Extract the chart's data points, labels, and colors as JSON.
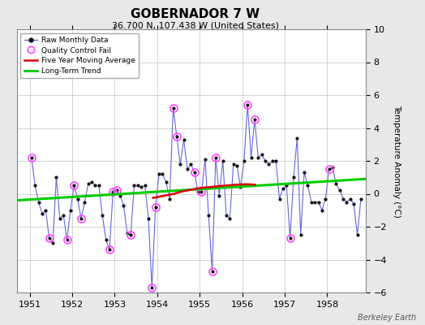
{
  "title": "GOBERNADOR 7 W",
  "subtitle": "36.700 N, 107.438 W (United States)",
  "ylabel": "Temperature Anomaly (°C)",
  "watermark": "Berkeley Earth",
  "ylim": [
    -6,
    10
  ],
  "yticks": [
    -6,
    -4,
    -2,
    0,
    2,
    4,
    6,
    8,
    10
  ],
  "xlim": [
    1950.7,
    1958.9
  ],
  "xticks": [
    1951,
    1952,
    1953,
    1954,
    1955,
    1956,
    1957,
    1958
  ],
  "bg_color": "#e8e8e8",
  "plot_bg_color": "#ffffff",
  "raw_x": [
    1951.042,
    1951.125,
    1951.208,
    1951.292,
    1951.375,
    1951.458,
    1951.542,
    1951.625,
    1951.708,
    1951.792,
    1951.875,
    1951.958,
    1952.042,
    1952.125,
    1952.208,
    1952.292,
    1952.375,
    1952.458,
    1952.542,
    1952.625,
    1952.708,
    1952.792,
    1952.875,
    1952.958,
    1953.042,
    1953.125,
    1953.208,
    1953.292,
    1953.375,
    1953.458,
    1953.542,
    1953.625,
    1953.708,
    1953.792,
    1953.875,
    1953.958,
    1954.042,
    1954.125,
    1954.208,
    1954.292,
    1954.375,
    1954.458,
    1954.542,
    1954.625,
    1954.708,
    1954.792,
    1954.875,
    1954.958,
    1955.042,
    1955.125,
    1955.208,
    1955.292,
    1955.375,
    1955.458,
    1955.542,
    1955.625,
    1955.708,
    1955.792,
    1955.875,
    1955.958,
    1956.042,
    1956.125,
    1956.208,
    1956.292,
    1956.375,
    1956.458,
    1956.542,
    1956.625,
    1956.708,
    1956.792,
    1956.875,
    1956.958,
    1957.042,
    1957.125,
    1957.208,
    1957.292,
    1957.375,
    1957.458,
    1957.542,
    1957.625,
    1957.708,
    1957.792,
    1957.875,
    1957.958,
    1958.042,
    1958.125,
    1958.208,
    1958.292,
    1958.375,
    1958.458,
    1958.542,
    1958.625,
    1958.708,
    1958.792
  ],
  "raw_y": [
    2.2,
    0.5,
    -0.5,
    -1.2,
    -1.0,
    -2.7,
    -3.0,
    1.0,
    -1.5,
    -1.3,
    -2.8,
    -1.0,
    0.5,
    -0.3,
    -1.5,
    -0.5,
    0.6,
    0.7,
    0.5,
    0.5,
    -1.3,
    -2.8,
    -3.4,
    0.1,
    0.2,
    -0.1,
    -0.7,
    -2.4,
    -2.5,
    0.5,
    0.5,
    0.4,
    0.5,
    -1.5,
    -5.7,
    -0.8,
    1.2,
    1.2,
    0.7,
    -0.3,
    5.2,
    3.5,
    1.8,
    3.3,
    1.5,
    1.8,
    1.3,
    0.1,
    0.1,
    2.1,
    -1.3,
    -4.7,
    2.2,
    -0.1,
    2.0,
    -1.3,
    -1.5,
    1.8,
    1.7,
    0.4,
    2.0,
    5.4,
    2.2,
    4.5,
    2.2,
    2.4,
    2.0,
    1.8,
    2.0,
    2.0,
    -0.3,
    0.3,
    0.5,
    -2.7,
    1.0,
    3.4,
    -2.5,
    1.3,
    0.5,
    -0.5,
    -0.5,
    -0.5,
    -1.0,
    -0.3,
    1.5,
    1.6,
    0.6,
    0.2,
    -0.3,
    -0.5,
    -0.3,
    -0.6,
    -2.5,
    -0.3
  ],
  "qc_fail_x": [
    1951.042,
    1951.458,
    1951.875,
    1952.042,
    1952.208,
    1952.875,
    1952.958,
    1953.042,
    1953.375,
    1953.875,
    1953.958,
    1954.375,
    1954.458,
    1954.875,
    1955.042,
    1955.292,
    1955.375,
    1956.125,
    1956.292,
    1957.125,
    1958.042
  ],
  "qc_fail_y": [
    2.2,
    -2.7,
    -2.8,
    0.5,
    -1.5,
    -3.4,
    0.1,
    0.2,
    -2.5,
    -5.7,
    -0.8,
    5.2,
    3.5,
    1.3,
    0.1,
    -4.7,
    2.2,
    5.4,
    4.5,
    -2.7,
    1.5
  ],
  "moving_avg_x": [
    1953.9,
    1954.0,
    1954.1,
    1954.2,
    1954.3,
    1954.4,
    1954.5,
    1954.6,
    1954.7,
    1954.8,
    1954.9,
    1955.0,
    1955.1,
    1955.2,
    1955.3,
    1955.4,
    1955.5,
    1955.6,
    1955.7,
    1955.8,
    1955.9,
    1956.0,
    1956.1,
    1956.2,
    1956.3
  ],
  "moving_avg_y": [
    -0.25,
    -0.2,
    -0.15,
    -0.1,
    -0.05,
    0.0,
    0.08,
    0.15,
    0.2,
    0.25,
    0.3,
    0.35,
    0.38,
    0.4,
    0.42,
    0.45,
    0.48,
    0.5,
    0.52,
    0.54,
    0.56,
    0.57,
    0.58,
    0.57,
    0.55
  ],
  "trend_x": [
    1950.7,
    1958.9
  ],
  "trend_y": [
    -0.4,
    0.9
  ],
  "raw_line_color": "#6666dd",
  "dot_color": "#111111",
  "qc_color": "#ff44ff",
  "moving_avg_color": "#dd0000",
  "trend_color": "#00cc00",
  "legend_bg": "#ffffff",
  "grid_color": "#cccccc"
}
